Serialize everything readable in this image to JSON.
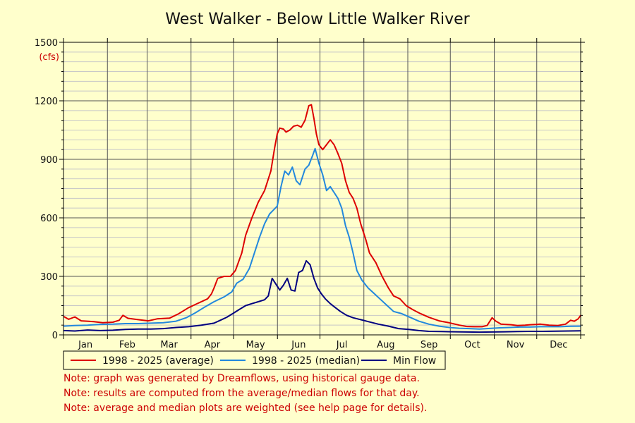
{
  "chart_data": {
    "type": "line",
    "title": "West Walker - Below Little Walker River",
    "unit_label": "(cfs)",
    "xlabel": "",
    "ylabel": "",
    "ylim": [
      0,
      1500
    ],
    "y_ticks": [
      0,
      300,
      600,
      900,
      1200,
      1500
    ],
    "month_labels": [
      "Jan",
      "Feb",
      "Mar",
      "Apr",
      "May",
      "Jun",
      "Jul",
      "Aug",
      "Sep",
      "Oct",
      "Nov",
      "Dec"
    ],
    "x_day_range": [
      1,
      366
    ],
    "grid": true,
    "legend_position": "bottom",
    "series": [
      {
        "name": "1998 - 2025 (average)",
        "color": "#dd0000",
        "points": [
          [
            1,
            95
          ],
          [
            5,
            80
          ],
          [
            10,
            92
          ],
          [
            15,
            72
          ],
          [
            25,
            68
          ],
          [
            32,
            62
          ],
          [
            40,
            65
          ],
          [
            45,
            75
          ],
          [
            48,
            100
          ],
          [
            52,
            85
          ],
          [
            60,
            78
          ],
          [
            68,
            72
          ],
          [
            75,
            82
          ],
          [
            85,
            86
          ],
          [
            92,
            108
          ],
          [
            100,
            140
          ],
          [
            105,
            155
          ],
          [
            115,
            185
          ],
          [
            118,
            210
          ],
          [
            120,
            240
          ],
          [
            123,
            290
          ],
          [
            128,
            300
          ],
          [
            133,
            300
          ],
          [
            137,
            330
          ],
          [
            142,
            420
          ],
          [
            145,
            510
          ],
          [
            150,
            600
          ],
          [
            155,
            680
          ],
          [
            160,
            740
          ],
          [
            165,
            840
          ],
          [
            168,
            960
          ],
          [
            170,
            1030
          ],
          [
            172,
            1060
          ],
          [
            175,
            1055
          ],
          [
            177,
            1040
          ],
          [
            180,
            1050
          ],
          [
            183,
            1070
          ],
          [
            186,
            1075
          ],
          [
            189,
            1065
          ],
          [
            192,
            1100
          ],
          [
            195,
            1175
          ],
          [
            197,
            1180
          ],
          [
            199,
            1110
          ],
          [
            201,
            1030
          ],
          [
            203,
            975
          ],
          [
            206,
            950
          ],
          [
            209,
            975
          ],
          [
            212,
            1000
          ],
          [
            215,
            975
          ],
          [
            218,
            930
          ],
          [
            221,
            880
          ],
          [
            224,
            790
          ],
          [
            227,
            730
          ],
          [
            230,
            700
          ],
          [
            233,
            650
          ],
          [
            236,
            570
          ],
          [
            240,
            490
          ],
          [
            243,
            420
          ],
          [
            248,
            370
          ],
          [
            253,
            300
          ],
          [
            258,
            240
          ],
          [
            262,
            200
          ],
          [
            267,
            185
          ],
          [
            272,
            150
          ],
          [
            277,
            130
          ],
          [
            283,
            110
          ],
          [
            290,
            90
          ],
          [
            298,
            72
          ],
          [
            306,
            62
          ],
          [
            314,
            50
          ],
          [
            320,
            43
          ],
          [
            326,
            42
          ],
          [
            332,
            42
          ],
          [
            336,
            48
          ],
          [
            340,
            88
          ],
          [
            343,
            70
          ],
          [
            347,
            55
          ],
          [
            355,
            52
          ],
          [
            360,
            48
          ],
          [
            366,
            50
          ],
          [
            370,
            52
          ],
          [
            378,
            55
          ],
          [
            385,
            50
          ],
          [
            392,
            48
          ],
          [
            398,
            55
          ],
          [
            402,
            75
          ],
          [
            405,
            70
          ],
          [
            408,
            82
          ],
          [
            410,
            100
          ]
        ]
      },
      {
        "name": "1998 - 2025 (median)",
        "color": "#2288dd",
        "points": [
          [
            1,
            45
          ],
          [
            10,
            48
          ],
          [
            20,
            50
          ],
          [
            30,
            54
          ],
          [
            40,
            55
          ],
          [
            50,
            58
          ],
          [
            60,
            58
          ],
          [
            70,
            60
          ],
          [
            80,
            62
          ],
          [
            90,
            70
          ],
          [
            98,
            88
          ],
          [
            105,
            112
          ],
          [
            112,
            140
          ],
          [
            120,
            170
          ],
          [
            128,
            195
          ],
          [
            134,
            220
          ],
          [
            138,
            265
          ],
          [
            143,
            285
          ],
          [
            148,
            340
          ],
          [
            152,
            420
          ],
          [
            156,
            500
          ],
          [
            160,
            570
          ],
          [
            164,
            620
          ],
          [
            167,
            640
          ],
          [
            170,
            660
          ],
          [
            173,
            760
          ],
          [
            176,
            840
          ],
          [
            179,
            820
          ],
          [
            182,
            860
          ],
          [
            185,
            790
          ],
          [
            188,
            770
          ],
          [
            192,
            850
          ],
          [
            195,
            870
          ],
          [
            198,
            920
          ],
          [
            200,
            955
          ],
          [
            203,
            880
          ],
          [
            206,
            820
          ],
          [
            209,
            740
          ],
          [
            212,
            760
          ],
          [
            215,
            730
          ],
          [
            218,
            700
          ],
          [
            221,
            650
          ],
          [
            224,
            560
          ],
          [
            227,
            500
          ],
          [
            230,
            420
          ],
          [
            233,
            330
          ],
          [
            237,
            280
          ],
          [
            242,
            240
          ],
          [
            247,
            210
          ],
          [
            252,
            180
          ],
          [
            257,
            150
          ],
          [
            262,
            120
          ],
          [
            268,
            110
          ],
          [
            275,
            90
          ],
          [
            282,
            70
          ],
          [
            290,
            55
          ],
          [
            298,
            45
          ],
          [
            306,
            38
          ],
          [
            314,
            34
          ],
          [
            322,
            32
          ],
          [
            330,
            30
          ],
          [
            338,
            33
          ],
          [
            346,
            36
          ],
          [
            354,
            38
          ],
          [
            362,
            40
          ],
          [
            370,
            40
          ],
          [
            378,
            42
          ],
          [
            386,
            42
          ],
          [
            394,
            42
          ],
          [
            402,
            44
          ],
          [
            410,
            45
          ]
        ]
      },
      {
        "name": "Min Flow",
        "color": "#000080",
        "points": [
          [
            1,
            22
          ],
          [
            10,
            20
          ],
          [
            20,
            25
          ],
          [
            30,
            22
          ],
          [
            40,
            24
          ],
          [
            50,
            28
          ],
          [
            60,
            30
          ],
          [
            70,
            30
          ],
          [
            80,
            32
          ],
          [
            90,
            38
          ],
          [
            100,
            42
          ],
          [
            110,
            50
          ],
          [
            120,
            60
          ],
          [
            125,
            75
          ],
          [
            130,
            90
          ],
          [
            135,
            110
          ],
          [
            140,
            130
          ],
          [
            145,
            150
          ],
          [
            150,
            160
          ],
          [
            155,
            170
          ],
          [
            160,
            180
          ],
          [
            163,
            200
          ],
          [
            166,
            290
          ],
          [
            169,
            260
          ],
          [
            172,
            230
          ],
          [
            175,
            255
          ],
          [
            178,
            290
          ],
          [
            181,
            230
          ],
          [
            184,
            225
          ],
          [
            187,
            320
          ],
          [
            190,
            330
          ],
          [
            193,
            380
          ],
          [
            196,
            360
          ],
          [
            199,
            290
          ],
          [
            202,
            240
          ],
          [
            205,
            210
          ],
          [
            208,
            185
          ],
          [
            212,
            160
          ],
          [
            216,
            140
          ],
          [
            220,
            120
          ],
          [
            225,
            100
          ],
          [
            230,
            88
          ],
          [
            236,
            78
          ],
          [
            242,
            68
          ],
          [
            250,
            55
          ],
          [
            258,
            45
          ],
          [
            266,
            32
          ],
          [
            274,
            28
          ],
          [
            282,
            22
          ],
          [
            290,
            18
          ],
          [
            300,
            17
          ],
          [
            310,
            16
          ],
          [
            320,
            15
          ],
          [
            330,
            14
          ],
          [
            340,
            15
          ],
          [
            350,
            16
          ],
          [
            360,
            17
          ],
          [
            370,
            18
          ],
          [
            380,
            18
          ],
          [
            390,
            19
          ],
          [
            400,
            20
          ],
          [
            410,
            21
          ]
        ]
      }
    ]
  },
  "notes": [
    "Note: graph was generated by Dreamflows, using historical gauge data.",
    "Note: results are computed from the average/median flows for that day.",
    "Note: average and median plots are weighted (see help page for details)."
  ]
}
